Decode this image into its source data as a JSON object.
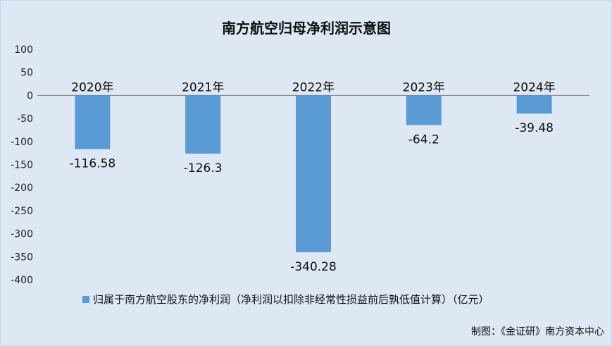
{
  "chart_data": {
    "type": "bar",
    "title": "南方航空归母净利润示意图",
    "categories": [
      "2020年",
      "2021年",
      "2022年",
      "2023年",
      "2024年"
    ],
    "series": [
      {
        "name": "归属于南方航空股东的净利润（净利润以扣除非经常性损益前后孰低值计算）（亿元）",
        "values": [
          -116.58,
          -126.3,
          -340.28,
          -64.2,
          -39.48
        ],
        "color": "#5b9bd5"
      }
    ],
    "data_labels": [
      "-116.58",
      "-126.3",
      "-340.28",
      "-64.2",
      "-39.48"
    ],
    "yticks": [
      "100",
      "50",
      "0",
      "-50",
      "-100",
      "-150",
      "-200",
      "-250",
      "-300",
      "-350",
      "-400"
    ],
    "ylim": [
      -400,
      100
    ],
    "grid": false,
    "legend_position": "bottom"
  },
  "credit": "制图：《金证研》南方资本中心"
}
